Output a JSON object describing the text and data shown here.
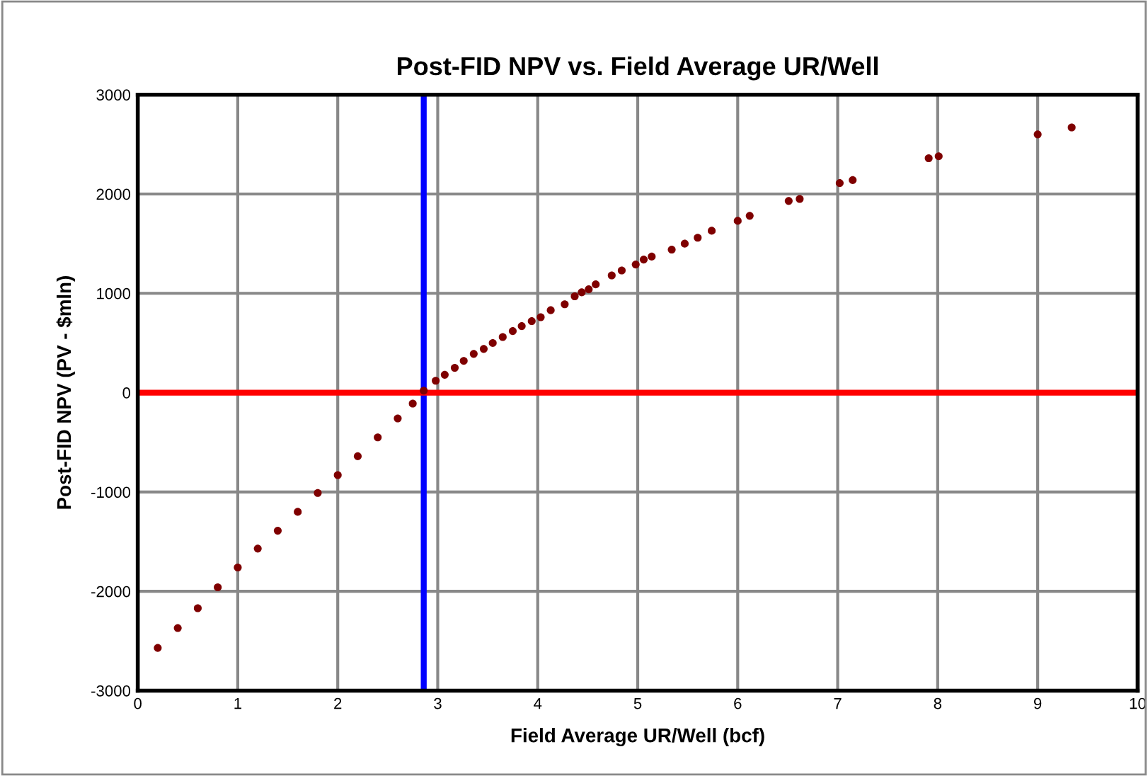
{
  "chart_data": {
    "type": "scatter",
    "title": "Post-FID NPV vs. Field Average UR/Well",
    "xlabel": "Field Average UR/Well (bcf)",
    "ylabel": "Post-FID NPV (PV - $mln)",
    "x": [
      0.2,
      0.4,
      0.6,
      0.8,
      1.0,
      1.2,
      1.4,
      1.6,
      1.8,
      2.0,
      2.2,
      2.4,
      2.6,
      2.75,
      2.86,
      2.98,
      3.07,
      3.17,
      3.26,
      3.36,
      3.46,
      3.55,
      3.65,
      3.75,
      3.84,
      3.94,
      4.03,
      4.13,
      4.27,
      4.37,
      4.44,
      4.51,
      4.58,
      4.74,
      4.84,
      4.98,
      5.06,
      5.14,
      5.34,
      5.47,
      5.6,
      5.74,
      6.0,
      6.12,
      6.51,
      6.62,
      7.02,
      7.15,
      7.91,
      8.01,
      9.0,
      9.34
    ],
    "series": [
      {
        "color": "#7f0000",
        "values": [
          -2570,
          -2370,
          -2170,
          -1960,
          -1760,
          -1570,
          -1390,
          -1200,
          -1010,
          -830,
          -640,
          -450,
          -260,
          -110,
          20,
          120,
          180,
          250,
          320,
          390,
          440,
          500,
          560,
          620,
          670,
          720,
          760,
          830,
          890,
          970,
          1010,
          1040,
          1090,
          1180,
          1230,
          1290,
          1340,
          1370,
          1440,
          1500,
          1560,
          1630,
          1730,
          1780,
          1930,
          1950,
          2110,
          2140,
          2360,
          2380,
          2600,
          2670
        ]
      }
    ],
    "marker": "circle",
    "xlim": [
      0,
      10
    ],
    "xticks": [
      0,
      1,
      2,
      3,
      4,
      5,
      6,
      7,
      8,
      9,
      10
    ],
    "ylim": [
      -3000,
      3000
    ],
    "yticks": [
      -3000,
      -2000,
      -1000,
      0,
      1000,
      2000,
      3000
    ],
    "grid": true,
    "ref_lines": [
      {
        "axis": "x",
        "value": 2.86,
        "color": "#0000ff"
      },
      {
        "axis": "y",
        "value": 0,
        "color": "#ff0000"
      }
    ]
  }
}
